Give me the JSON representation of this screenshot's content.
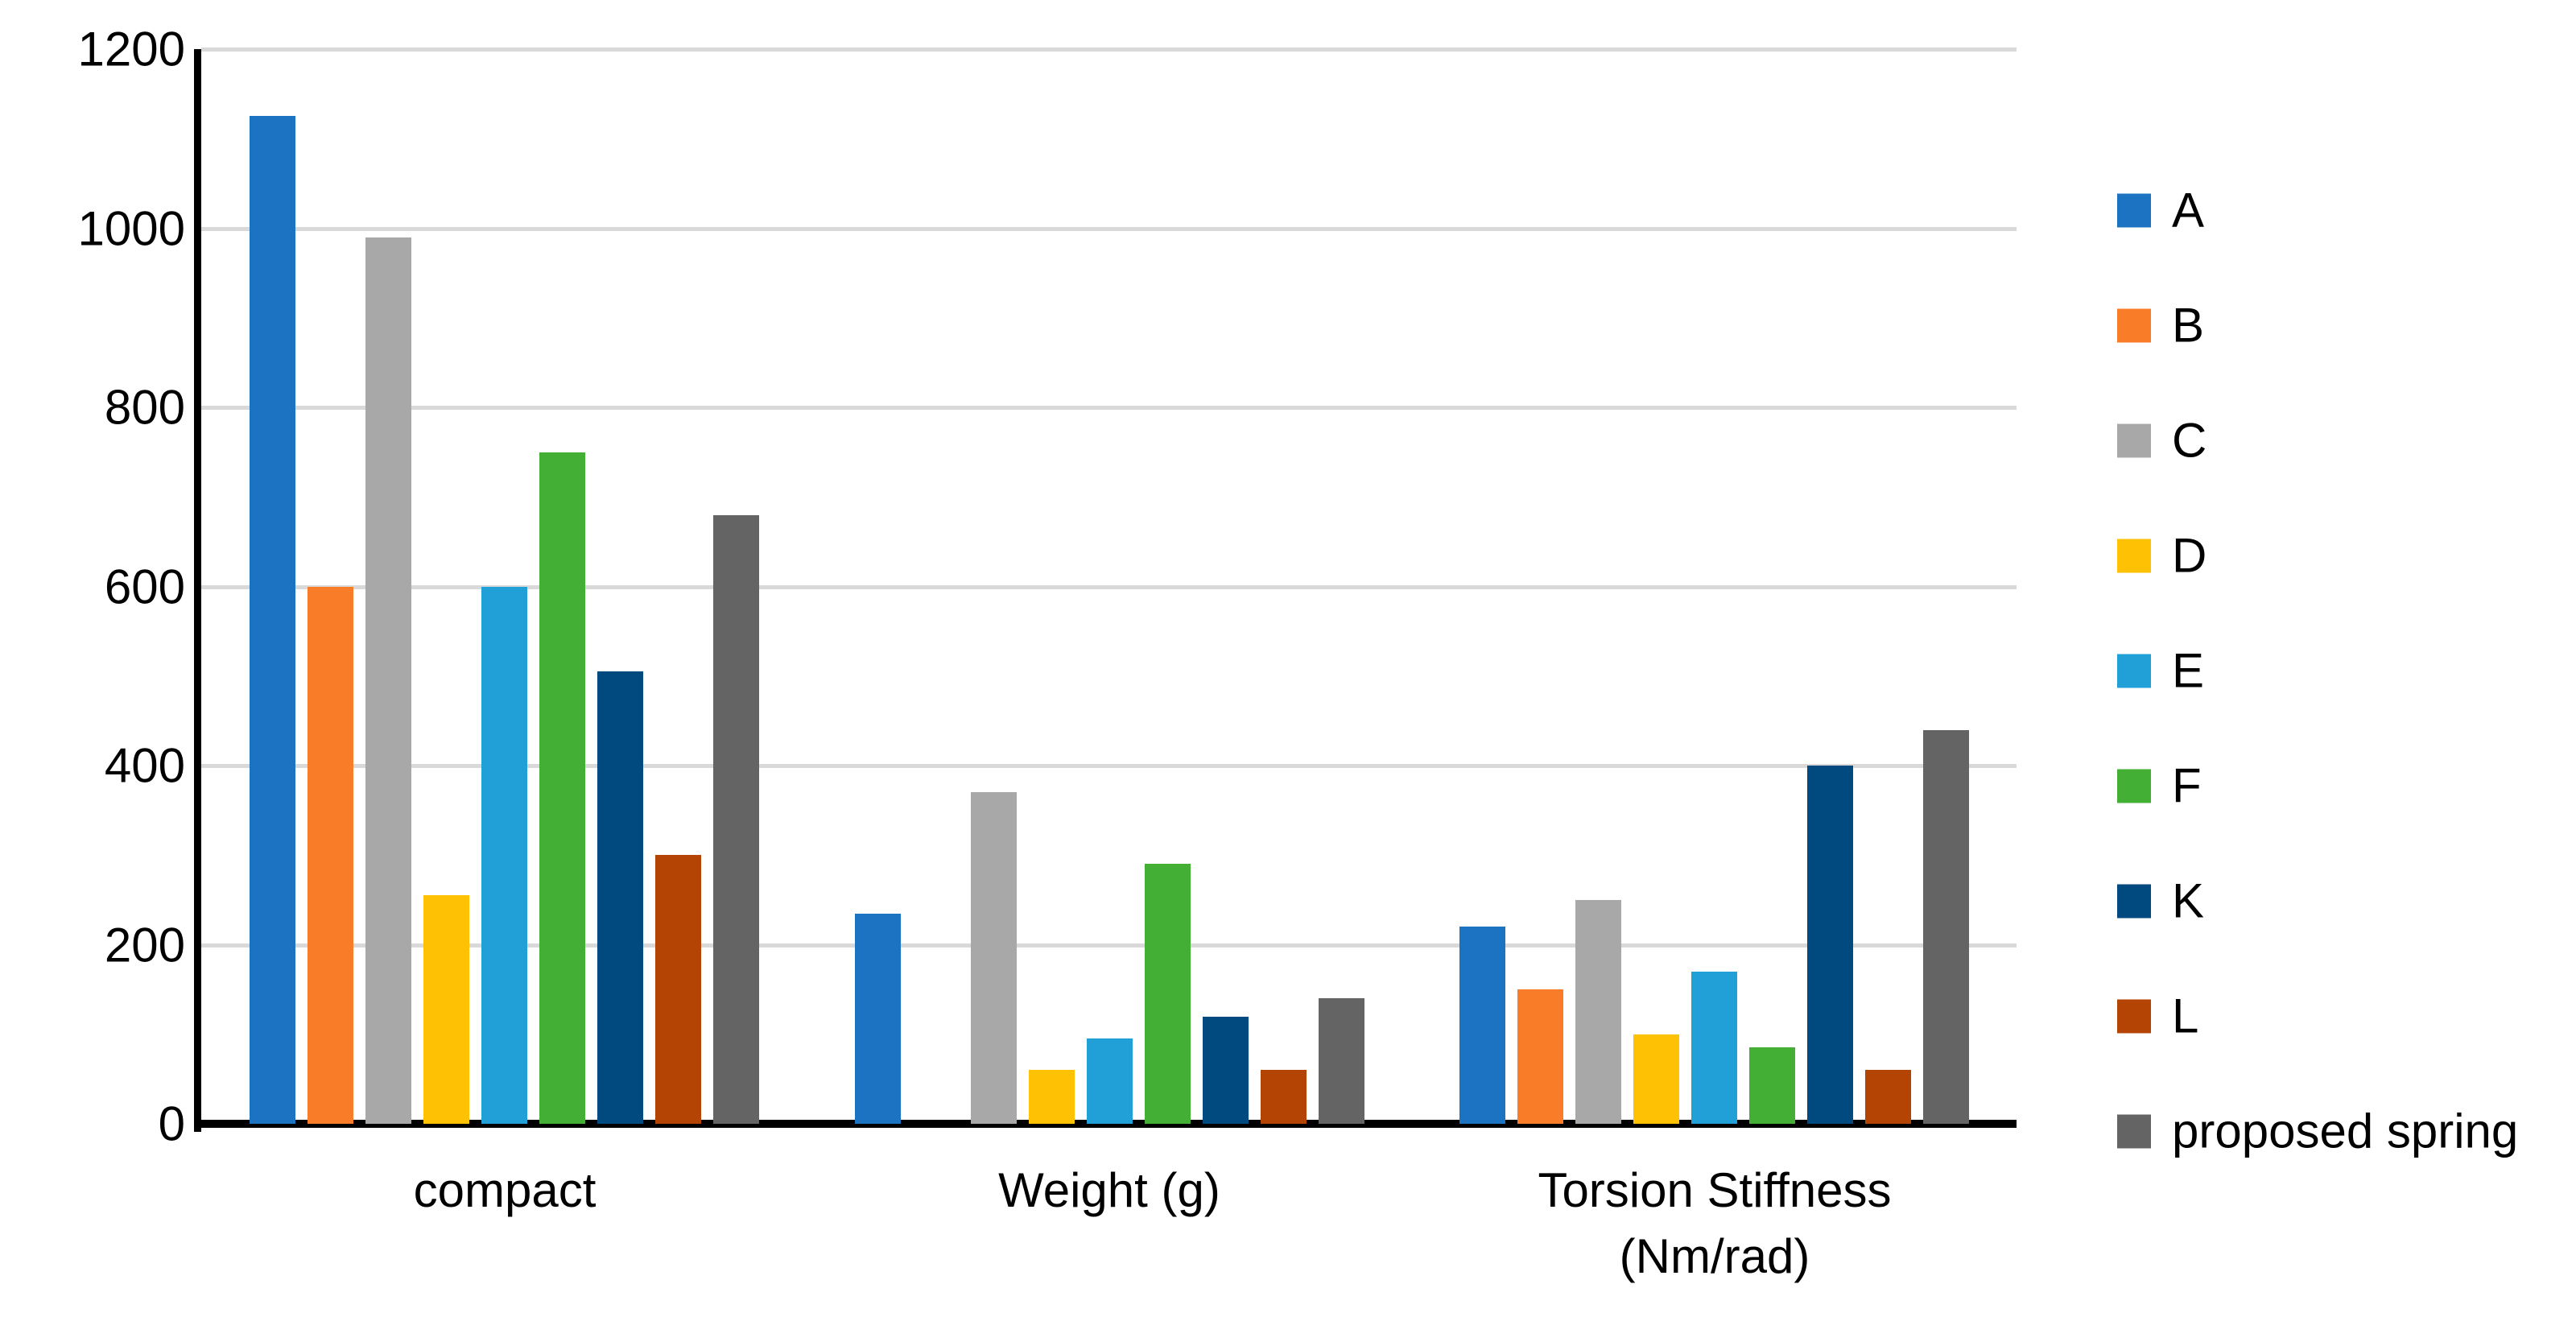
{
  "chart_data": {
    "type": "bar",
    "title": "",
    "xlabel": "",
    "ylabel": "",
    "categories": [
      "compact",
      "Weight (g)",
      "Torsion Stiffness (Nm/rad)"
    ],
    "category_label_lines": [
      [
        "compact"
      ],
      [
        "Weight (g)"
      ],
      [
        "Torsion Stiffness",
        "(Nm/rad)"
      ]
    ],
    "series": [
      {
        "name": "A",
        "color": "#1b73c2",
        "values": [
          1125,
          235,
          220
        ]
      },
      {
        "name": "B",
        "color": "#f97d28",
        "values": [
          600,
          0,
          150
        ]
      },
      {
        "name": "C",
        "color": "#a8a8a8",
        "values": [
          990,
          370,
          250
        ]
      },
      {
        "name": "D",
        "color": "#ffc103",
        "values": [
          255,
          60,
          100
        ]
      },
      {
        "name": "E",
        "color": "#219fd7",
        "values": [
          600,
          95,
          170
        ]
      },
      {
        "name": "F",
        "color": "#44af35",
        "values": [
          750,
          290,
          85
        ]
      },
      {
        "name": "K",
        "color": "#004a7f",
        "values": [
          505,
          120,
          400
        ]
      },
      {
        "name": "L",
        "color": "#b34404",
        "values": [
          300,
          60,
          60
        ]
      },
      {
        "name": "proposed spring",
        "color": "#646464",
        "values": [
          680,
          140,
          440
        ]
      }
    ],
    "ylim": [
      0,
      1200
    ],
    "yticks": [
      0,
      200,
      400,
      600,
      800,
      1000,
      1200
    ],
    "ytick_labels": [
      "0",
      "200",
      "400",
      "600",
      "800",
      "1000",
      "1200"
    ],
    "grid": true,
    "gridline_color": "#d9d9d9",
    "axis_color": "#000000",
    "background_color": "#ffffff",
    "legend_position": "right"
  }
}
